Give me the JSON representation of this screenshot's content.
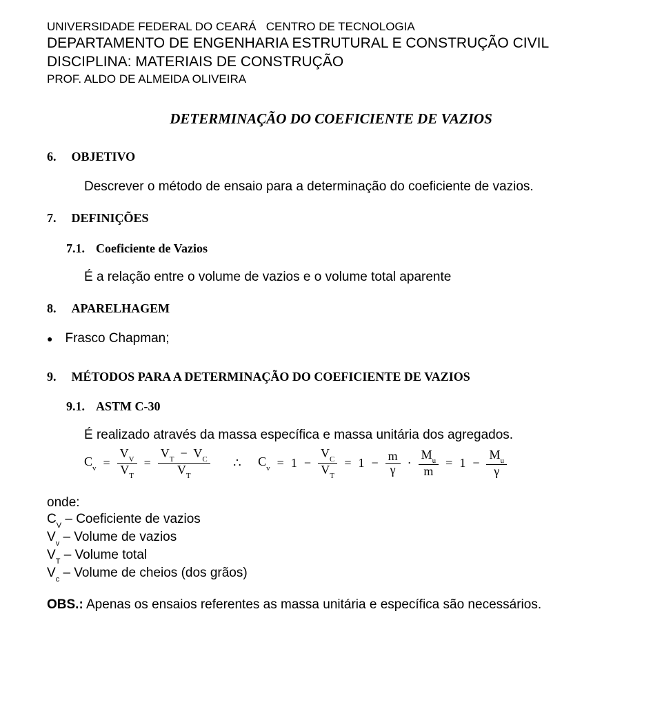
{
  "header": {
    "line1a": "UNIVERSIDADE FEDERAL DO CEARÁ",
    "line1b": "CENTRO DE  TECNOLOGIA",
    "line2": "DEPARTAMENTO DE ENGENHARIA ESTRUTURAL E CONSTRUÇÃO CIVIL",
    "line3": "DISCIPLINA: MATERIAIS DE CONSTRUÇÃO",
    "line4": "PROF. ALDO DE ALMEIDA OLIVEIRA"
  },
  "title": "DETERMINAÇÃO DO COEFICIENTE DE VAZIOS",
  "sections": {
    "objetivo": {
      "num": "6.",
      "title": "OBJETIVO",
      "body": "Descrever o método de ensaio para a determinação do coeficiente de vazios."
    },
    "definicoes": {
      "num": "7.",
      "title": "DEFINIÇÕES",
      "sub": {
        "num": "7.1.",
        "title": "Coeficiente de Vazios",
        "body": "É a relação entre o volume de vazios e o volume total aparente"
      }
    },
    "aparelhagem": {
      "num": "8.",
      "title": "APARELHAGEM",
      "bullet": "Frasco Chapman;"
    },
    "metodos": {
      "num": "9.",
      "title": "MÉTODOS PARA A DETERMINAÇÃO DO COEFICIENTE DE VAZIOS",
      "sub": {
        "num": "9.1.",
        "title": "ASTM C-30",
        "body": "É realizado através da massa específica e massa unitária dos agregados."
      }
    }
  },
  "formula": {
    "Cv": "C",
    "v": "v",
    "eq": "=",
    "Vv_num": "V",
    "Vv_numsub": "V",
    "VT": "V",
    "T": "T",
    "VC": "V",
    "C": "C",
    "m": "m",
    "gamma": "γ",
    "Mu": "M",
    "u": "u",
    "therefore": "∴",
    "one": "1",
    "minus": "−",
    "dot": "·"
  },
  "where": {
    "label": "onde:",
    "l1": "C",
    "l1sub": "V",
    "l1txt": " – Coeficiente de vazios",
    "l2": "V",
    "l2sub": "v",
    "l2txt": " – Volume de vazios",
    "l3": "V",
    "l3sub": "T",
    "l3txt": " – Volume total",
    "l4": "V",
    "l4sub": "c",
    "l4txt": " – Volume de cheios (dos grãos)"
  },
  "obs": {
    "label": "OBS.:",
    "text": "  Apenas os ensaios referentes as massa unitária e específica são necessários."
  }
}
